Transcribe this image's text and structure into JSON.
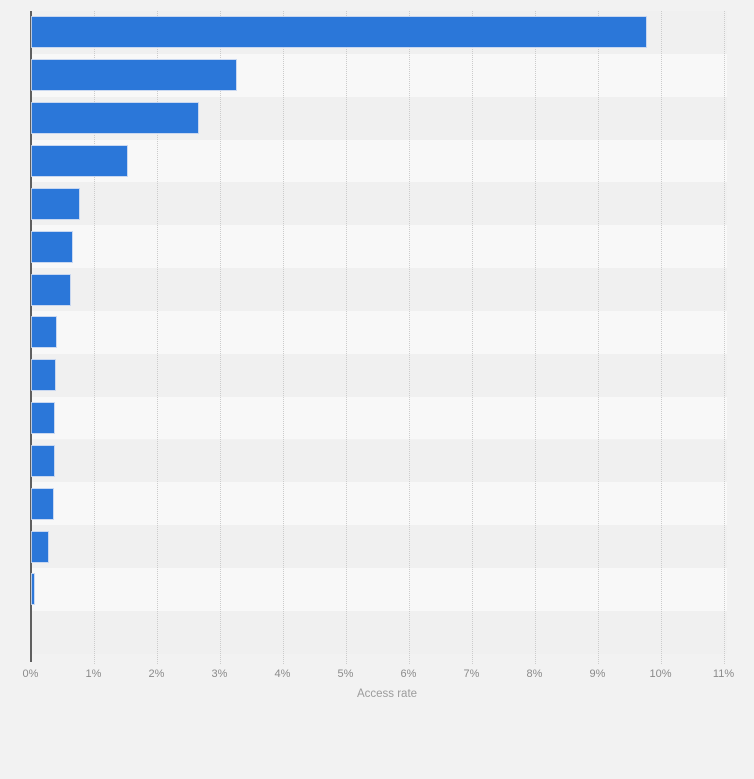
{
  "chart_data": {
    "type": "bar",
    "orientation": "horizontal",
    "title": "",
    "xlabel": "Access rate",
    "ylabel": "",
    "x_ticks": [
      "0%",
      "1%",
      "2%",
      "3%",
      "4%",
      "5%",
      "6%",
      "7%",
      "8%",
      "9%",
      "10%",
      "11%"
    ],
    "xlim": [
      0,
      11.05
    ],
    "grid": "vertical-dotted",
    "legend": "none",
    "values": [
      9.75,
      3.25,
      2.65,
      1.52,
      0.76,
      0.65,
      0.61,
      0.39,
      0.37,
      0.36,
      0.35,
      0.34,
      0.26,
      0.04
    ],
    "unit": "%"
  },
  "colors": {
    "page_background": "#f2f2f2",
    "row_stripe_dark": "#f0f0f0",
    "row_stripe_light": "#f8f8f8",
    "bar_fill": "#2b77d9",
    "bar_halo": "#c3d4f0",
    "gridline": "#cbcbcb",
    "axis_line": "#5f5f5f",
    "tick_label": "#8b8b8b",
    "axis_title_color": "#9c9c9c"
  }
}
